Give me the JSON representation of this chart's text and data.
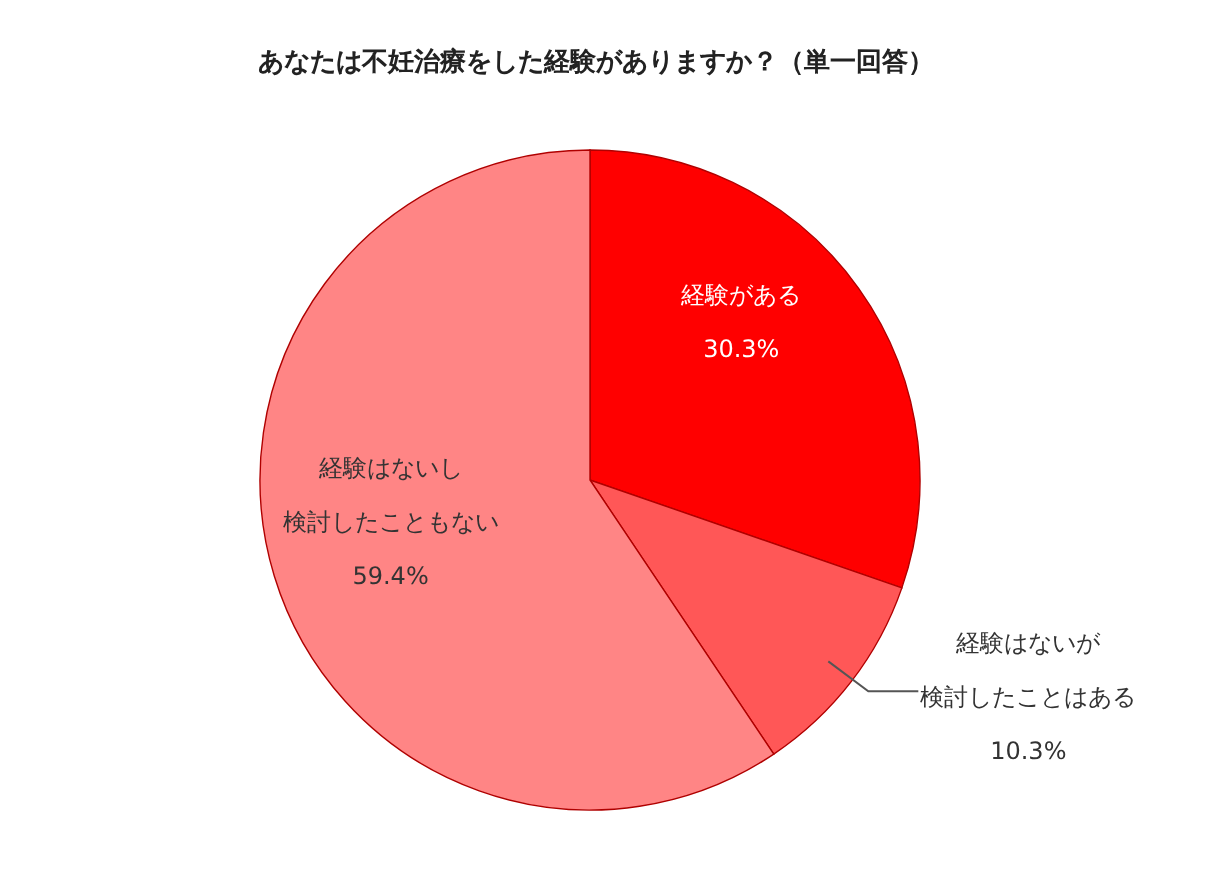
{
  "chart_data": {
    "type": "pie",
    "title": "あなたは不妊治療をした経験がありますか？（単一回答）",
    "categories": [
      "経験がある",
      "経験はないが検討したことはある",
      "経験はないし検討したこともない"
    ],
    "values": [
      30.3,
      10.3,
      59.4
    ],
    "colors": [
      "#ff0000",
      "#ff5757",
      "#ff8585"
    ],
    "value_labels": [
      "30.3%",
      "10.3%",
      "59.4%"
    ]
  }
}
